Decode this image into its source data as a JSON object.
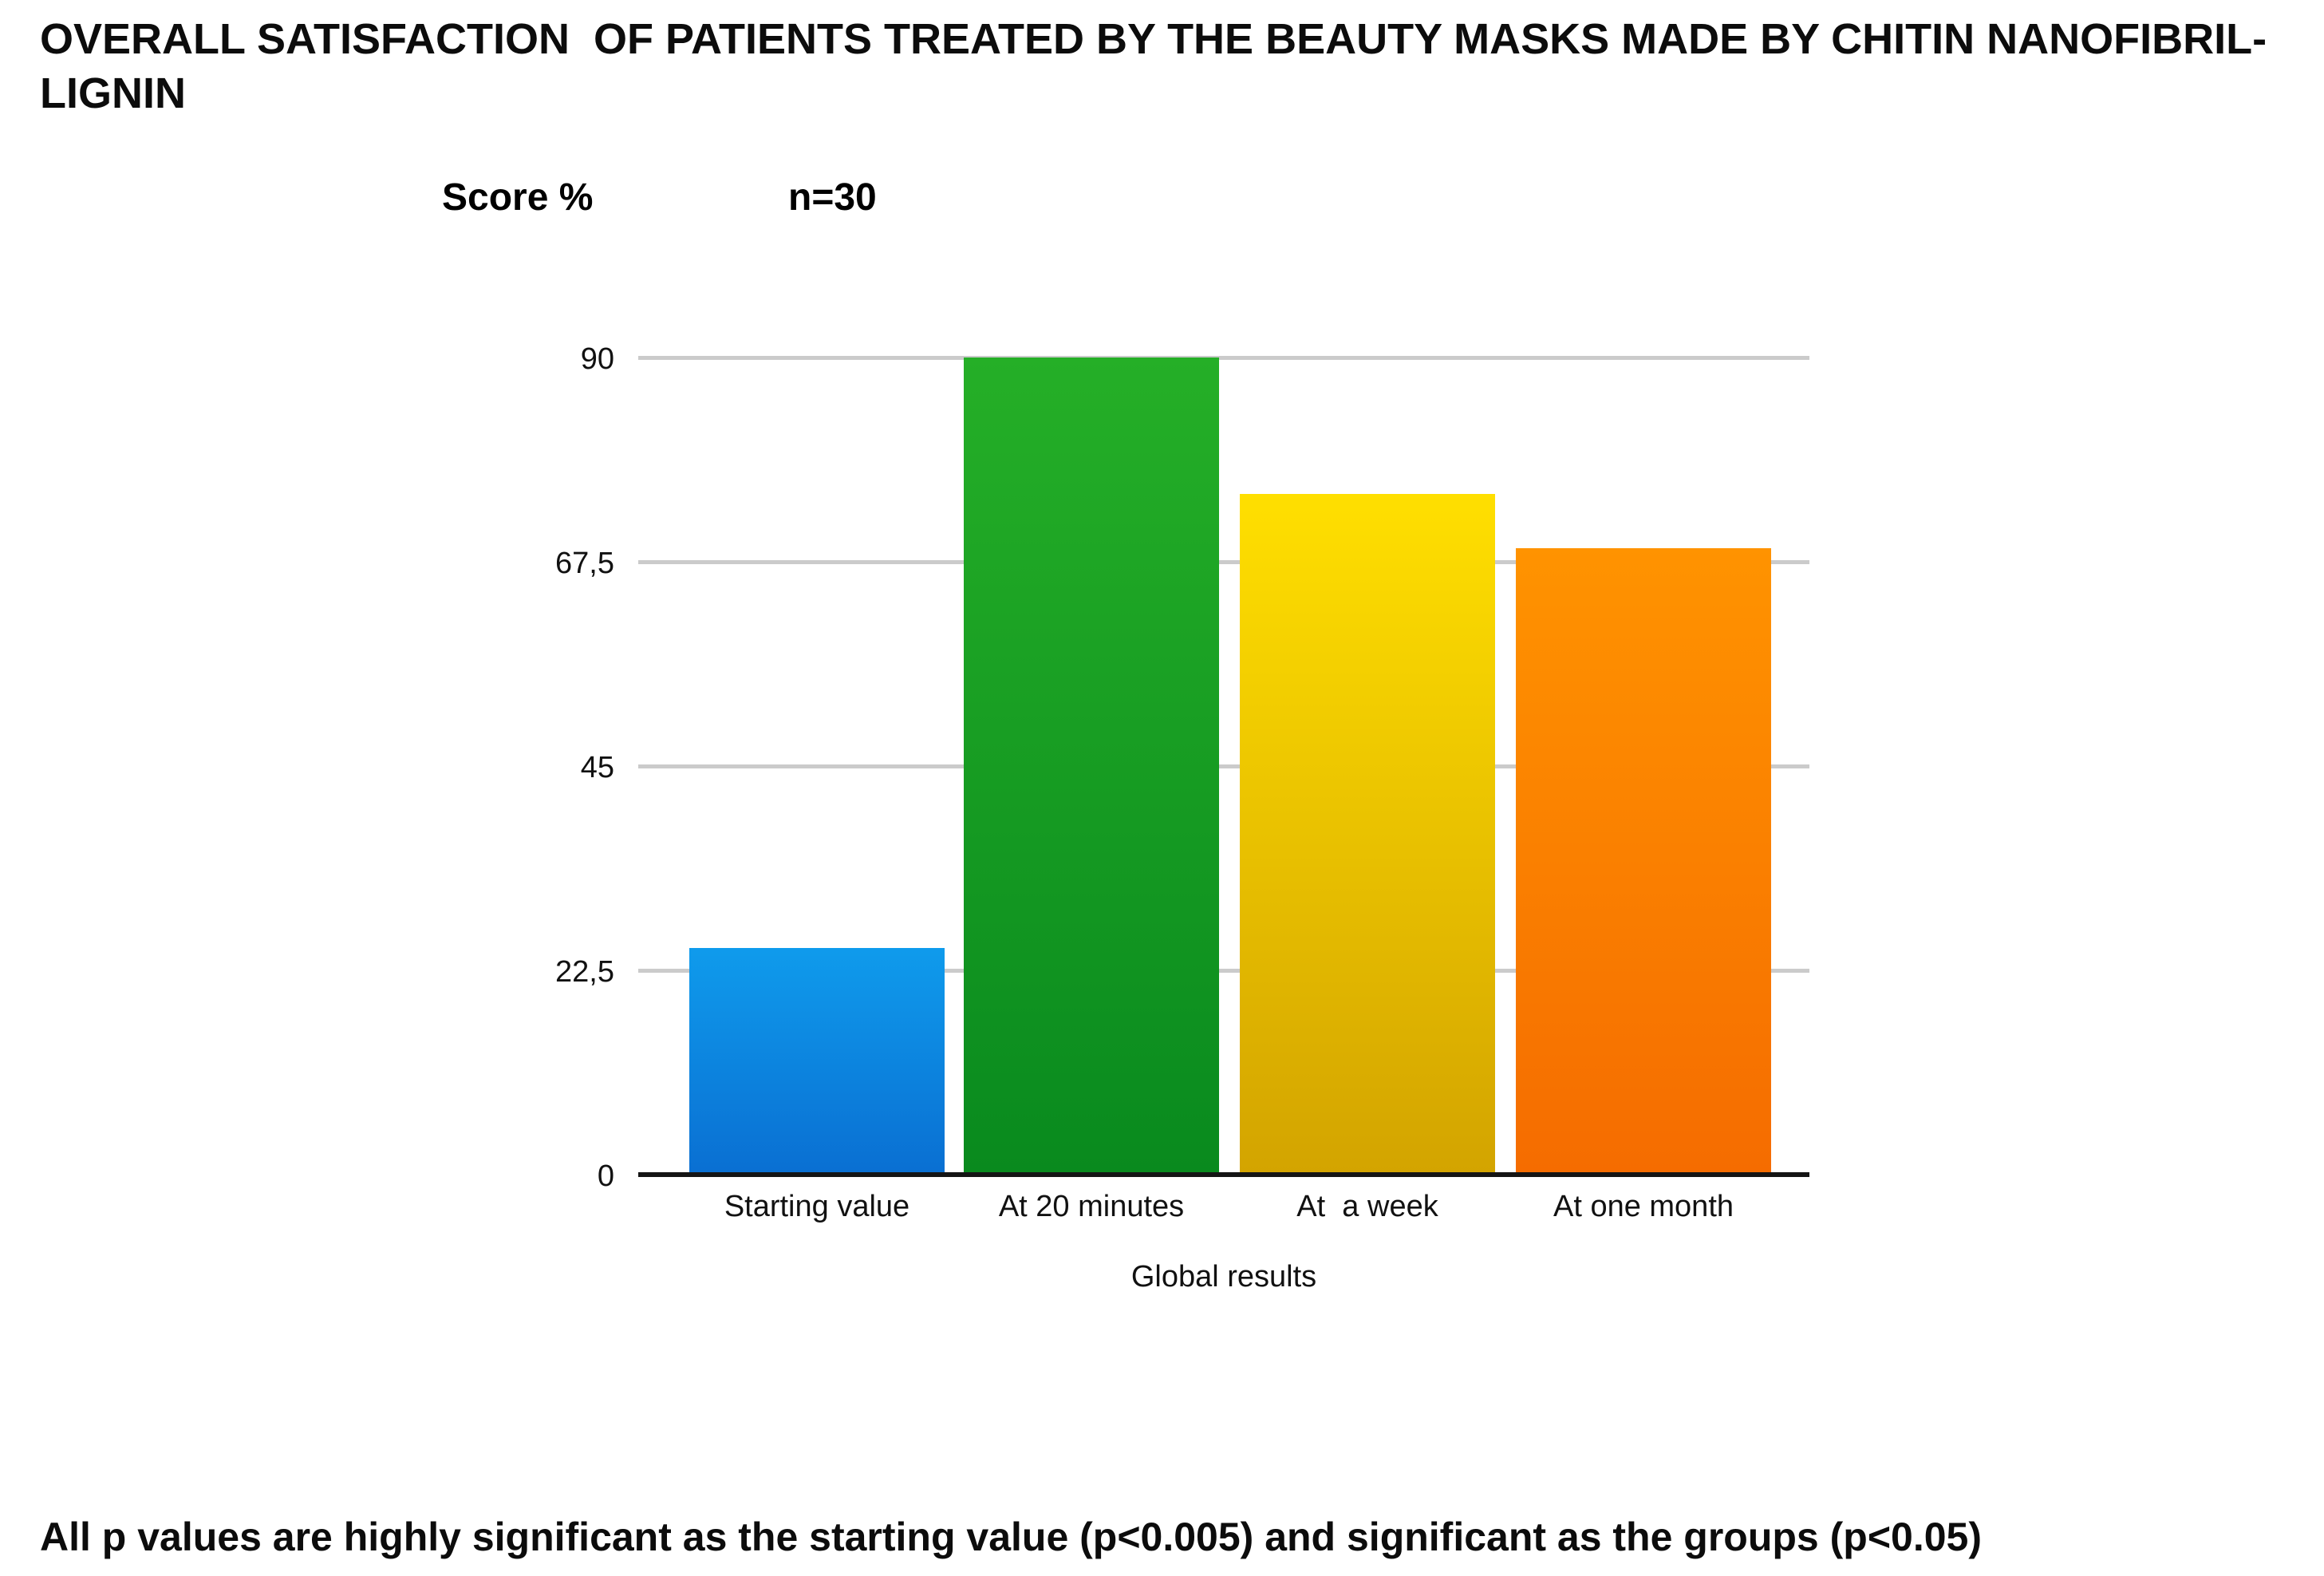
{
  "page": {
    "title_line1": "OVERALL SATISFACTION  OF PATIENTS TREATED BY THE BEAUTY MASKS MADE BY CHITIN NANOFIBRIL-",
    "title_line2": "LIGNIN",
    "footnote": "All p values are highly significant as the starting value (p<0.005) and significant as the groups (p<0.05)"
  },
  "chart_data": {
    "type": "bar",
    "title": "OVERALL SATISFACTION OF PATIENTS TREATED BY THE BEAUTY MASKS MADE BY CHITIN NANOFIBRIL-LIGNIN",
    "ylabel": "Score %",
    "sample_size_label": "n=30",
    "xlabel": "Global results",
    "categories": [
      "Starting value",
      "At 20 minutes",
      "At  a week",
      "At one month"
    ],
    "values": [
      25,
      90,
      75,
      69
    ],
    "ylim": [
      0,
      90
    ],
    "yticks": [
      {
        "label": "0",
        "value": 0
      },
      {
        "label": "22,5",
        "value": 22.5
      },
      {
        "label": "45",
        "value": 45
      },
      {
        "label": "67,5",
        "value": 67.5
      },
      {
        "label": "90",
        "value": 90
      }
    ],
    "grid": true,
    "legend_position": "none",
    "colors": {
      "gridline": "#cbcbcb",
      "axis_line": "#151515",
      "bars": [
        {
          "name": "blue",
          "top": "#0f9bec",
          "bottom": "#0a6fd2"
        },
        {
          "name": "green",
          "top": "#25af27",
          "bottom": "#098a1e"
        },
        {
          "name": "yellow",
          "top": "#ffdf00",
          "bottom": "#d3a400"
        },
        {
          "name": "orange",
          "top": "#ff9300",
          "bottom": "#f56c00"
        }
      ]
    }
  }
}
